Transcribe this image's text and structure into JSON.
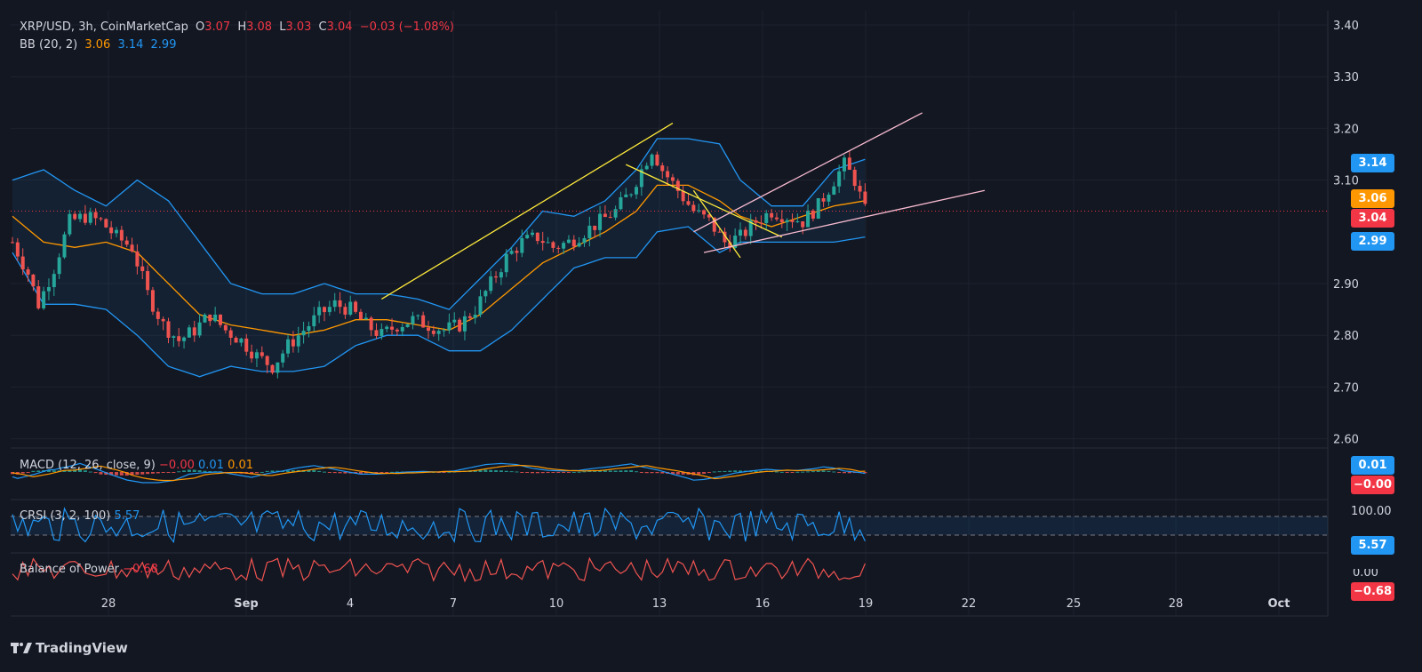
{
  "header": {
    "symbol": "XRP/USD, 3h, CoinMarketCap",
    "o_label": "O",
    "o_value": "3.07",
    "h_label": "H",
    "h_value": "3.08",
    "l_label": "L",
    "l_value": "3.03",
    "c_label": "C",
    "c_value": "3.04",
    "change": "−0.03 (−1.08%)"
  },
  "bb_legend": {
    "label": "BB (20, 2)",
    "mid": "3.06",
    "upper": "3.14",
    "lower": "2.99"
  },
  "macd_legend": {
    "label": "MACD (12, 26, close, 9)",
    "hist": "−0.00",
    "macd": "0.01",
    "signal": "0.01"
  },
  "crsi_legend": {
    "label": "CRSI (3, 2, 100)",
    "value": "5.57"
  },
  "bop_legend": {
    "label": "Balance of Power",
    "value": "−0.68"
  },
  "badges": {
    "bb_upper": "3.14",
    "bb_mid": "3.06",
    "last_price": "3.04",
    "bb_lower": "2.99",
    "macd_pos": "0.01",
    "macd_neg": "−0.00",
    "crsi": "5.57",
    "bop": "−0.68",
    "crsi_top": "100.00",
    "bop_axis": "0.00"
  },
  "colors": {
    "background": "#131722",
    "up": "#26a69a",
    "down": "#ef5350",
    "bb_band": "#2196f3",
    "bb_basis": "#ff9800",
    "trend_yellow": "#ffeb3b",
    "trend_pink": "#f8bbd0",
    "grid": "#1e222d",
    "last_price": "#f23645"
  },
  "brand": {
    "name": "TradingView",
    "icon": "tradingview-logo-icon"
  },
  "chart_data": {
    "type": "candlestick",
    "title": "XRP/USD, 3h, CoinMarketCap",
    "y_axis_ticks": [
      "3.40",
      "3.30",
      "3.20",
      "3.10",
      "2.90",
      "2.80",
      "2.70",
      "2.60"
    ],
    "ylim": [
      2.58,
      3.42
    ],
    "x_axis_ticks": [
      "28",
      "Sep",
      "4",
      "7",
      "10",
      "13",
      "16",
      "19",
      "22",
      "25",
      "28",
      "Oct"
    ],
    "last_price": 3.04,
    "series": [
      {
        "name": "price_path",
        "points": [
          [
            0,
            2.98
          ],
          [
            3,
            2.92
          ],
          [
            5,
            2.86
          ],
          [
            8,
            2.93
          ],
          [
            11,
            3.02
          ],
          [
            14,
            3.03
          ],
          [
            17,
            3.02
          ],
          [
            20,
            2.99
          ],
          [
            23,
            2.97
          ],
          [
            26,
            2.88
          ],
          [
            29,
            2.82
          ],
          [
            32,
            2.79
          ],
          [
            35,
            2.81
          ],
          [
            38,
            2.84
          ],
          [
            41,
            2.81
          ],
          [
            44,
            2.79
          ],
          [
            47,
            2.76
          ],
          [
            50,
            2.74
          ],
          [
            53,
            2.78
          ],
          [
            56,
            2.81
          ],
          [
            59,
            2.84
          ],
          [
            62,
            2.86
          ],
          [
            65,
            2.85
          ],
          [
            68,
            2.82
          ],
          [
            71,
            2.8
          ],
          [
            74,
            2.82
          ],
          [
            77,
            2.83
          ],
          [
            80,
            2.82
          ],
          [
            83,
            2.81
          ],
          [
            86,
            2.82
          ],
          [
            89,
            2.85
          ],
          [
            92,
            2.9
          ],
          [
            95,
            2.95
          ],
          [
            98,
            2.98
          ],
          [
            101,
            2.99
          ],
          [
            104,
            2.97
          ],
          [
            107,
            2.98
          ],
          [
            110,
            3.0
          ],
          [
            113,
            3.02
          ],
          [
            116,
            3.04
          ],
          [
            119,
            3.08
          ],
          [
            121,
            3.12
          ],
          [
            123,
            3.16
          ],
          [
            125,
            3.12
          ],
          [
            128,
            3.08
          ],
          [
            131,
            3.04
          ],
          [
            134,
            3.02
          ],
          [
            137,
            2.98
          ],
          [
            140,
            2.99
          ],
          [
            143,
            3.02
          ],
          [
            146,
            3.04
          ],
          [
            149,
            3.03
          ],
          [
            152,
            3.02
          ],
          [
            155,
            3.05
          ],
          [
            158,
            3.1
          ],
          [
            160,
            3.13
          ],
          [
            162,
            3.1
          ],
          [
            164,
            3.04
          ]
        ]
      },
      {
        "name": "bb_upper",
        "points": [
          [
            0,
            3.1
          ],
          [
            6,
            3.12
          ],
          [
            12,
            3.08
          ],
          [
            18,
            3.05
          ],
          [
            24,
            3.1
          ],
          [
            30,
            3.06
          ],
          [
            36,
            2.98
          ],
          [
            42,
            2.9
          ],
          [
            48,
            2.88
          ],
          [
            54,
            2.88
          ],
          [
            60,
            2.9
          ],
          [
            66,
            2.88
          ],
          [
            72,
            2.88
          ],
          [
            78,
            2.87
          ],
          [
            84,
            2.85
          ],
          [
            90,
            2.91
          ],
          [
            96,
            2.97
          ],
          [
            102,
            3.04
          ],
          [
            108,
            3.03
          ],
          [
            114,
            3.06
          ],
          [
            120,
            3.12
          ],
          [
            124,
            3.18
          ],
          [
            130,
            3.18
          ],
          [
            136,
            3.17
          ],
          [
            140,
            3.1
          ],
          [
            146,
            3.05
          ],
          [
            152,
            3.05
          ],
          [
            158,
            3.12
          ],
          [
            164,
            3.14
          ]
        ]
      },
      {
        "name": "bb_basis",
        "points": [
          [
            0,
            3.03
          ],
          [
            6,
            2.98
          ],
          [
            12,
            2.97
          ],
          [
            18,
            2.98
          ],
          [
            24,
            2.96
          ],
          [
            30,
            2.9
          ],
          [
            36,
            2.84
          ],
          [
            42,
            2.82
          ],
          [
            48,
            2.81
          ],
          [
            54,
            2.8
          ],
          [
            60,
            2.81
          ],
          [
            66,
            2.83
          ],
          [
            72,
            2.83
          ],
          [
            78,
            2.82
          ],
          [
            84,
            2.81
          ],
          [
            90,
            2.84
          ],
          [
            96,
            2.89
          ],
          [
            102,
            2.94
          ],
          [
            108,
            2.97
          ],
          [
            114,
            3.0
          ],
          [
            120,
            3.04
          ],
          [
            124,
            3.09
          ],
          [
            130,
            3.09
          ],
          [
            136,
            3.06
          ],
          [
            140,
            3.03
          ],
          [
            146,
            3.01
          ],
          [
            152,
            3.03
          ],
          [
            158,
            3.05
          ],
          [
            164,
            3.06
          ]
        ]
      },
      {
        "name": "bb_lower",
        "points": [
          [
            0,
            2.96
          ],
          [
            6,
            2.86
          ],
          [
            12,
            2.86
          ],
          [
            18,
            2.85
          ],
          [
            24,
            2.8
          ],
          [
            30,
            2.74
          ],
          [
            36,
            2.72
          ],
          [
            42,
            2.74
          ],
          [
            48,
            2.73
          ],
          [
            54,
            2.73
          ],
          [
            60,
            2.74
          ],
          [
            66,
            2.78
          ],
          [
            72,
            2.8
          ],
          [
            78,
            2.8
          ],
          [
            84,
            2.77
          ],
          [
            90,
            2.77
          ],
          [
            96,
            2.81
          ],
          [
            102,
            2.87
          ],
          [
            108,
            2.93
          ],
          [
            114,
            2.95
          ],
          [
            120,
            2.95
          ],
          [
            124,
            3.0
          ],
          [
            130,
            3.01
          ],
          [
            136,
            2.96
          ],
          [
            140,
            2.98
          ],
          [
            146,
            2.98
          ],
          [
            152,
            2.98
          ],
          [
            158,
            2.98
          ],
          [
            164,
            2.99
          ]
        ]
      }
    ],
    "trendlines": [
      {
        "name": "rising-yellow",
        "color": "#ffeb3b",
        "from": [
          71,
          2.87
        ],
        "to": [
          127,
          3.21
        ]
      },
      {
        "name": "falling-yellow-upper",
        "color": "#ffeb3b",
        "from": [
          118,
          3.13
        ],
        "to": [
          148,
          2.99
        ]
      },
      {
        "name": "falling-yellow-lower",
        "color": "#ffeb3b",
        "from": [
          131,
          3.08
        ],
        "to": [
          140,
          2.95
        ]
      },
      {
        "name": "pink-upper",
        "color": "#f8bbd0",
        "from": [
          131,
          3.0
        ],
        "to": [
          175,
          3.23
        ]
      },
      {
        "name": "pink-lower",
        "color": "#f8bbd0",
        "from": [
          133,
          2.96
        ],
        "to": [
          187,
          3.08
        ]
      }
    ]
  }
}
